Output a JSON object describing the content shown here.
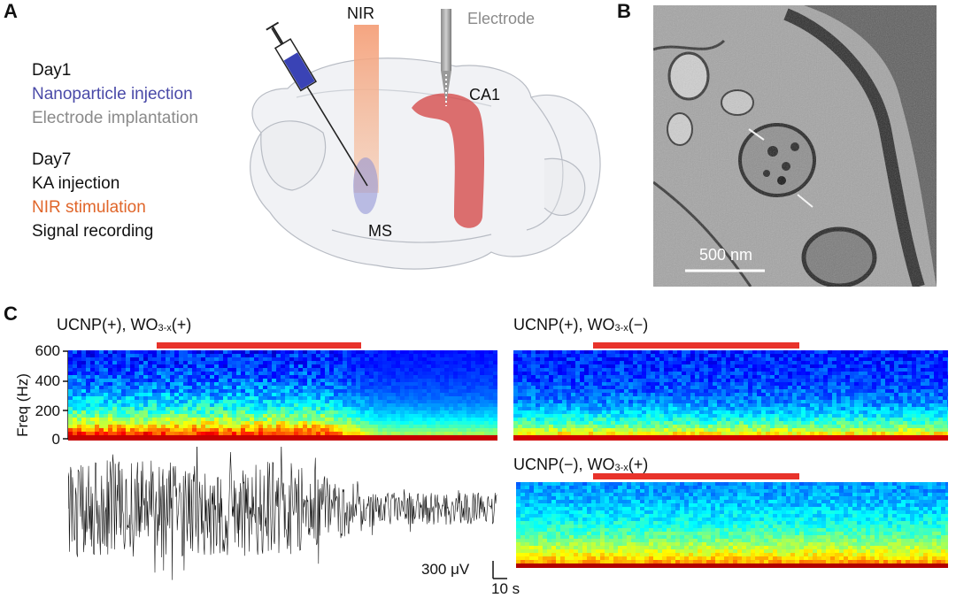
{
  "panel_letters": {
    "a": "A",
    "b": "B",
    "c": "C"
  },
  "panel_a": {
    "protocol": {
      "day1": "Day1",
      "injection": "Nanoparticle injection",
      "implant": "Electrode implantation",
      "day7": "Day7",
      "ka": "KA injection",
      "nir_stim": "NIR stimulation",
      "recording": "Signal recording"
    },
    "labels": {
      "nir": "NIR",
      "electrode": "Electrode",
      "ca1": "CA1",
      "ms": "MS"
    },
    "colors": {
      "injection": "#4a4aa8",
      "implant": "#8a8a8a",
      "nir": "#e0662a",
      "ca1": "#d23a3a"
    }
  },
  "panel_b": {
    "scalebar": "500 nm"
  },
  "panel_c": {
    "spec1_title": {
      "pre": "UCNP(+), WO",
      "sub": "3-x",
      "post": "(+)"
    },
    "spec2_title": {
      "pre": "UCNP(+), WO",
      "sub": "3-x",
      "post": "(−)"
    },
    "spec3_title": {
      "pre": "UCNP(−), WO",
      "sub": "3-x",
      "post": "(+)"
    },
    "yaxis_label": "Freq (Hz)",
    "yticks": [
      "600",
      "400",
      "200",
      "0"
    ],
    "scale_voltage": "300 μV",
    "scale_time": "10 s",
    "stim_color": "#e8332b"
  }
}
